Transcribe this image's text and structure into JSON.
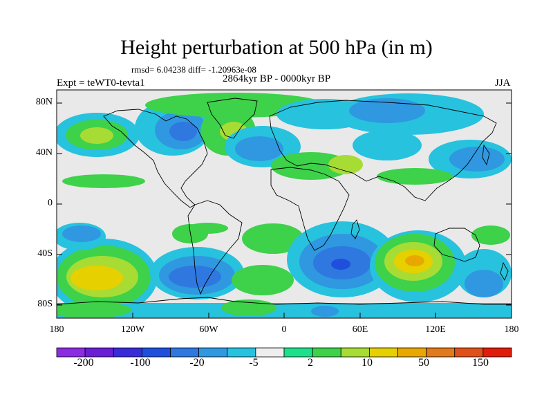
{
  "header": {
    "title": "Height perturbation at 500 hPa (in m)",
    "stats": "rmsd= 6.04238 diff= -1.20963e-08",
    "period": "2864kyr BP - 0000kyr BP",
    "experiment": "Expt = teWT0-tevta1",
    "season": "JJA"
  },
  "axes": {
    "lat_ticks": [
      "80N",
      "40N",
      "0",
      "40S",
      "80S"
    ],
    "lon_ticks": [
      "180",
      "120W",
      "60W",
      "0",
      "60E",
      "120E",
      "180"
    ]
  },
  "colorbar": {
    "colors": [
      "#8b2be2",
      "#6b1fd4",
      "#3a2bd8",
      "#1f4fdc",
      "#2e78e0",
      "#2f98e0",
      "#27c2de",
      "#eeeeee",
      "#1fe08a",
      "#3ed14a",
      "#a7dc35",
      "#e6d000",
      "#e8a800",
      "#e07a1a",
      "#e0501a",
      "#e01c0c"
    ],
    "labels": [
      "-200",
      "-100",
      "-20",
      "-5",
      "2",
      "10",
      "50",
      "150"
    ]
  },
  "legend_colors": {
    "land_outline": "#000000",
    "neutral": "#e9e9e9"
  },
  "chart_data": {
    "type": "contour-map",
    "title": "Height perturbation at 500 hPa (in m)",
    "projection": "cylindrical equidistant",
    "lon_range": [
      -180,
      180
    ],
    "lat_range": [
      -90,
      90
    ],
    "units": "m",
    "fields": [
      {
        "region": "South Pacific / SW of South America",
        "lon": -145,
        "lat": -55,
        "value": 40
      },
      {
        "region": "Indian Ocean / SE of Australia",
        "lon": 105,
        "lat": -45,
        "value": 40
      },
      {
        "region": "South Atlantic / South Indian",
        "lon": 45,
        "lat": -48,
        "value": -20
      },
      {
        "region": "SE Pacific near South America",
        "lon": -80,
        "lat": -55,
        "value": -15
      },
      {
        "region": "Arctic North America",
        "lon": -85,
        "lat": 60,
        "value": -10
      },
      {
        "region": "Greenland",
        "lon": -45,
        "lat": 55,
        "value": 15
      },
      {
        "region": "North Pacific (west)",
        "lon": -160,
        "lat": 55,
        "value": 15
      },
      {
        "region": "North Atlantic",
        "lon": -20,
        "lat": 45,
        "value": -10
      },
      {
        "region": "Siberia",
        "lon": 110,
        "lat": 65,
        "value": -8
      },
      {
        "region": "Europe",
        "lon": 15,
        "lat": 40,
        "value": 5
      }
    ]
  }
}
